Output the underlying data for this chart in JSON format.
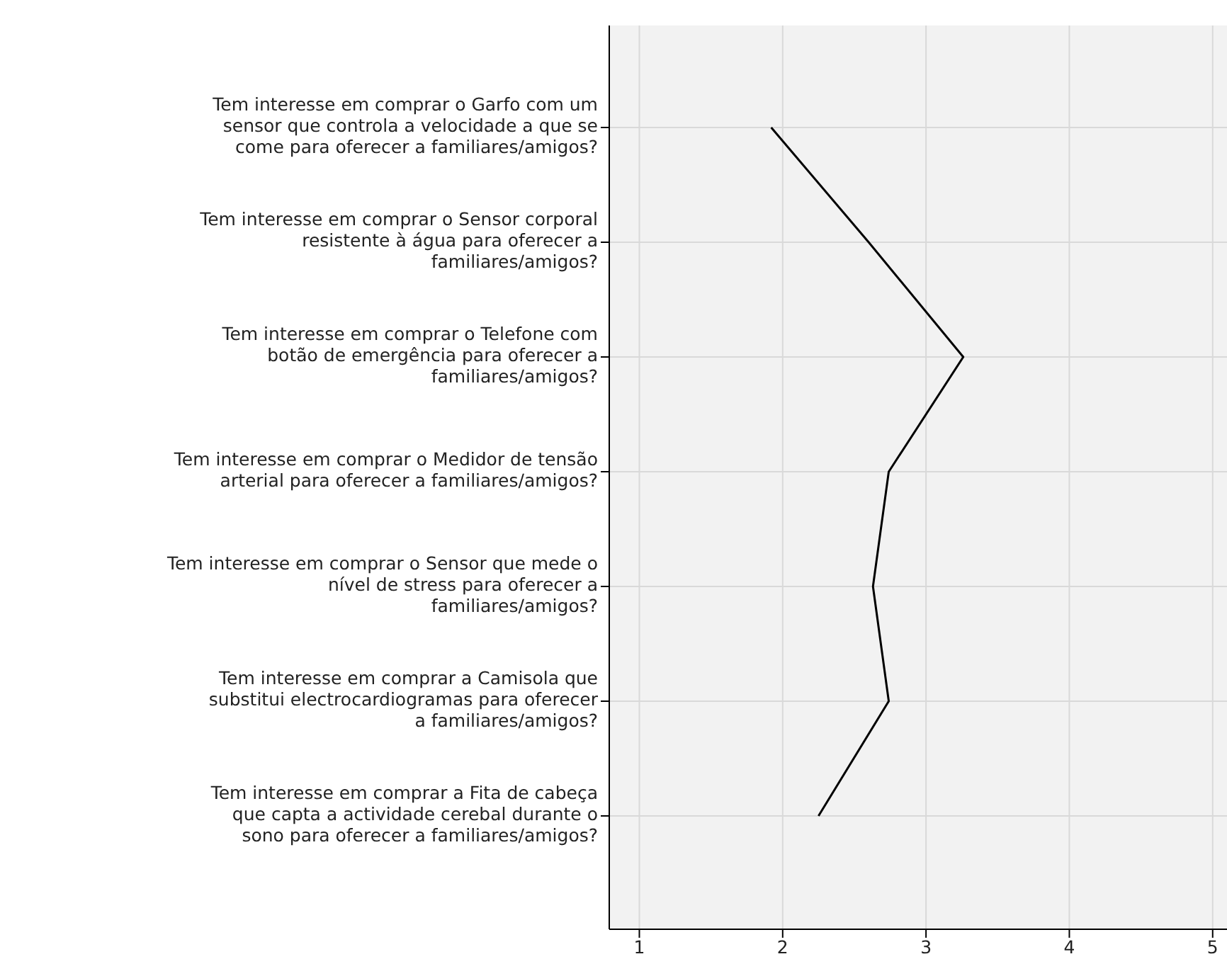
{
  "chart_data": {
    "type": "line",
    "orientation": "horizontal",
    "categories": [
      "Tem interesse em comprar o Garfo com um sensor que controla a velocidade a que se come para oferecer a familiares/amigos?",
      "Tem interesse em comprar o Sensor corporal resistente à água para oferecer a familiares/amigos?",
      "Tem interesse em comprar o Telefone com botão de emergência para oferecer a familiares/amigos?",
      "Tem interesse em comprar o Medidor de tensão arterial para oferecer a familiares/amigos?",
      "Tem interesse em comprar o Sensor que mede o nível de stress para oferecer a familiares/amigos?",
      "Tem interesse em comprar a Camisola que substitui electrocardiogramas para oferecer a familiares/amigos?",
      "Tem interesse em comprar a Fita de cabeça que capta a actividade cerebal durante o sono para oferecer a familiares/amigos?"
    ],
    "values": [
      1.92,
      2.6,
      3.26,
      2.74,
      2.63,
      2.74,
      2.25
    ],
    "color": "#000000",
    "xlim": [
      0.79,
      5.1
    ],
    "xticks": [
      1,
      2,
      3,
      4,
      5
    ],
    "grid": true,
    "marker": "none",
    "line_style": "solid"
  }
}
